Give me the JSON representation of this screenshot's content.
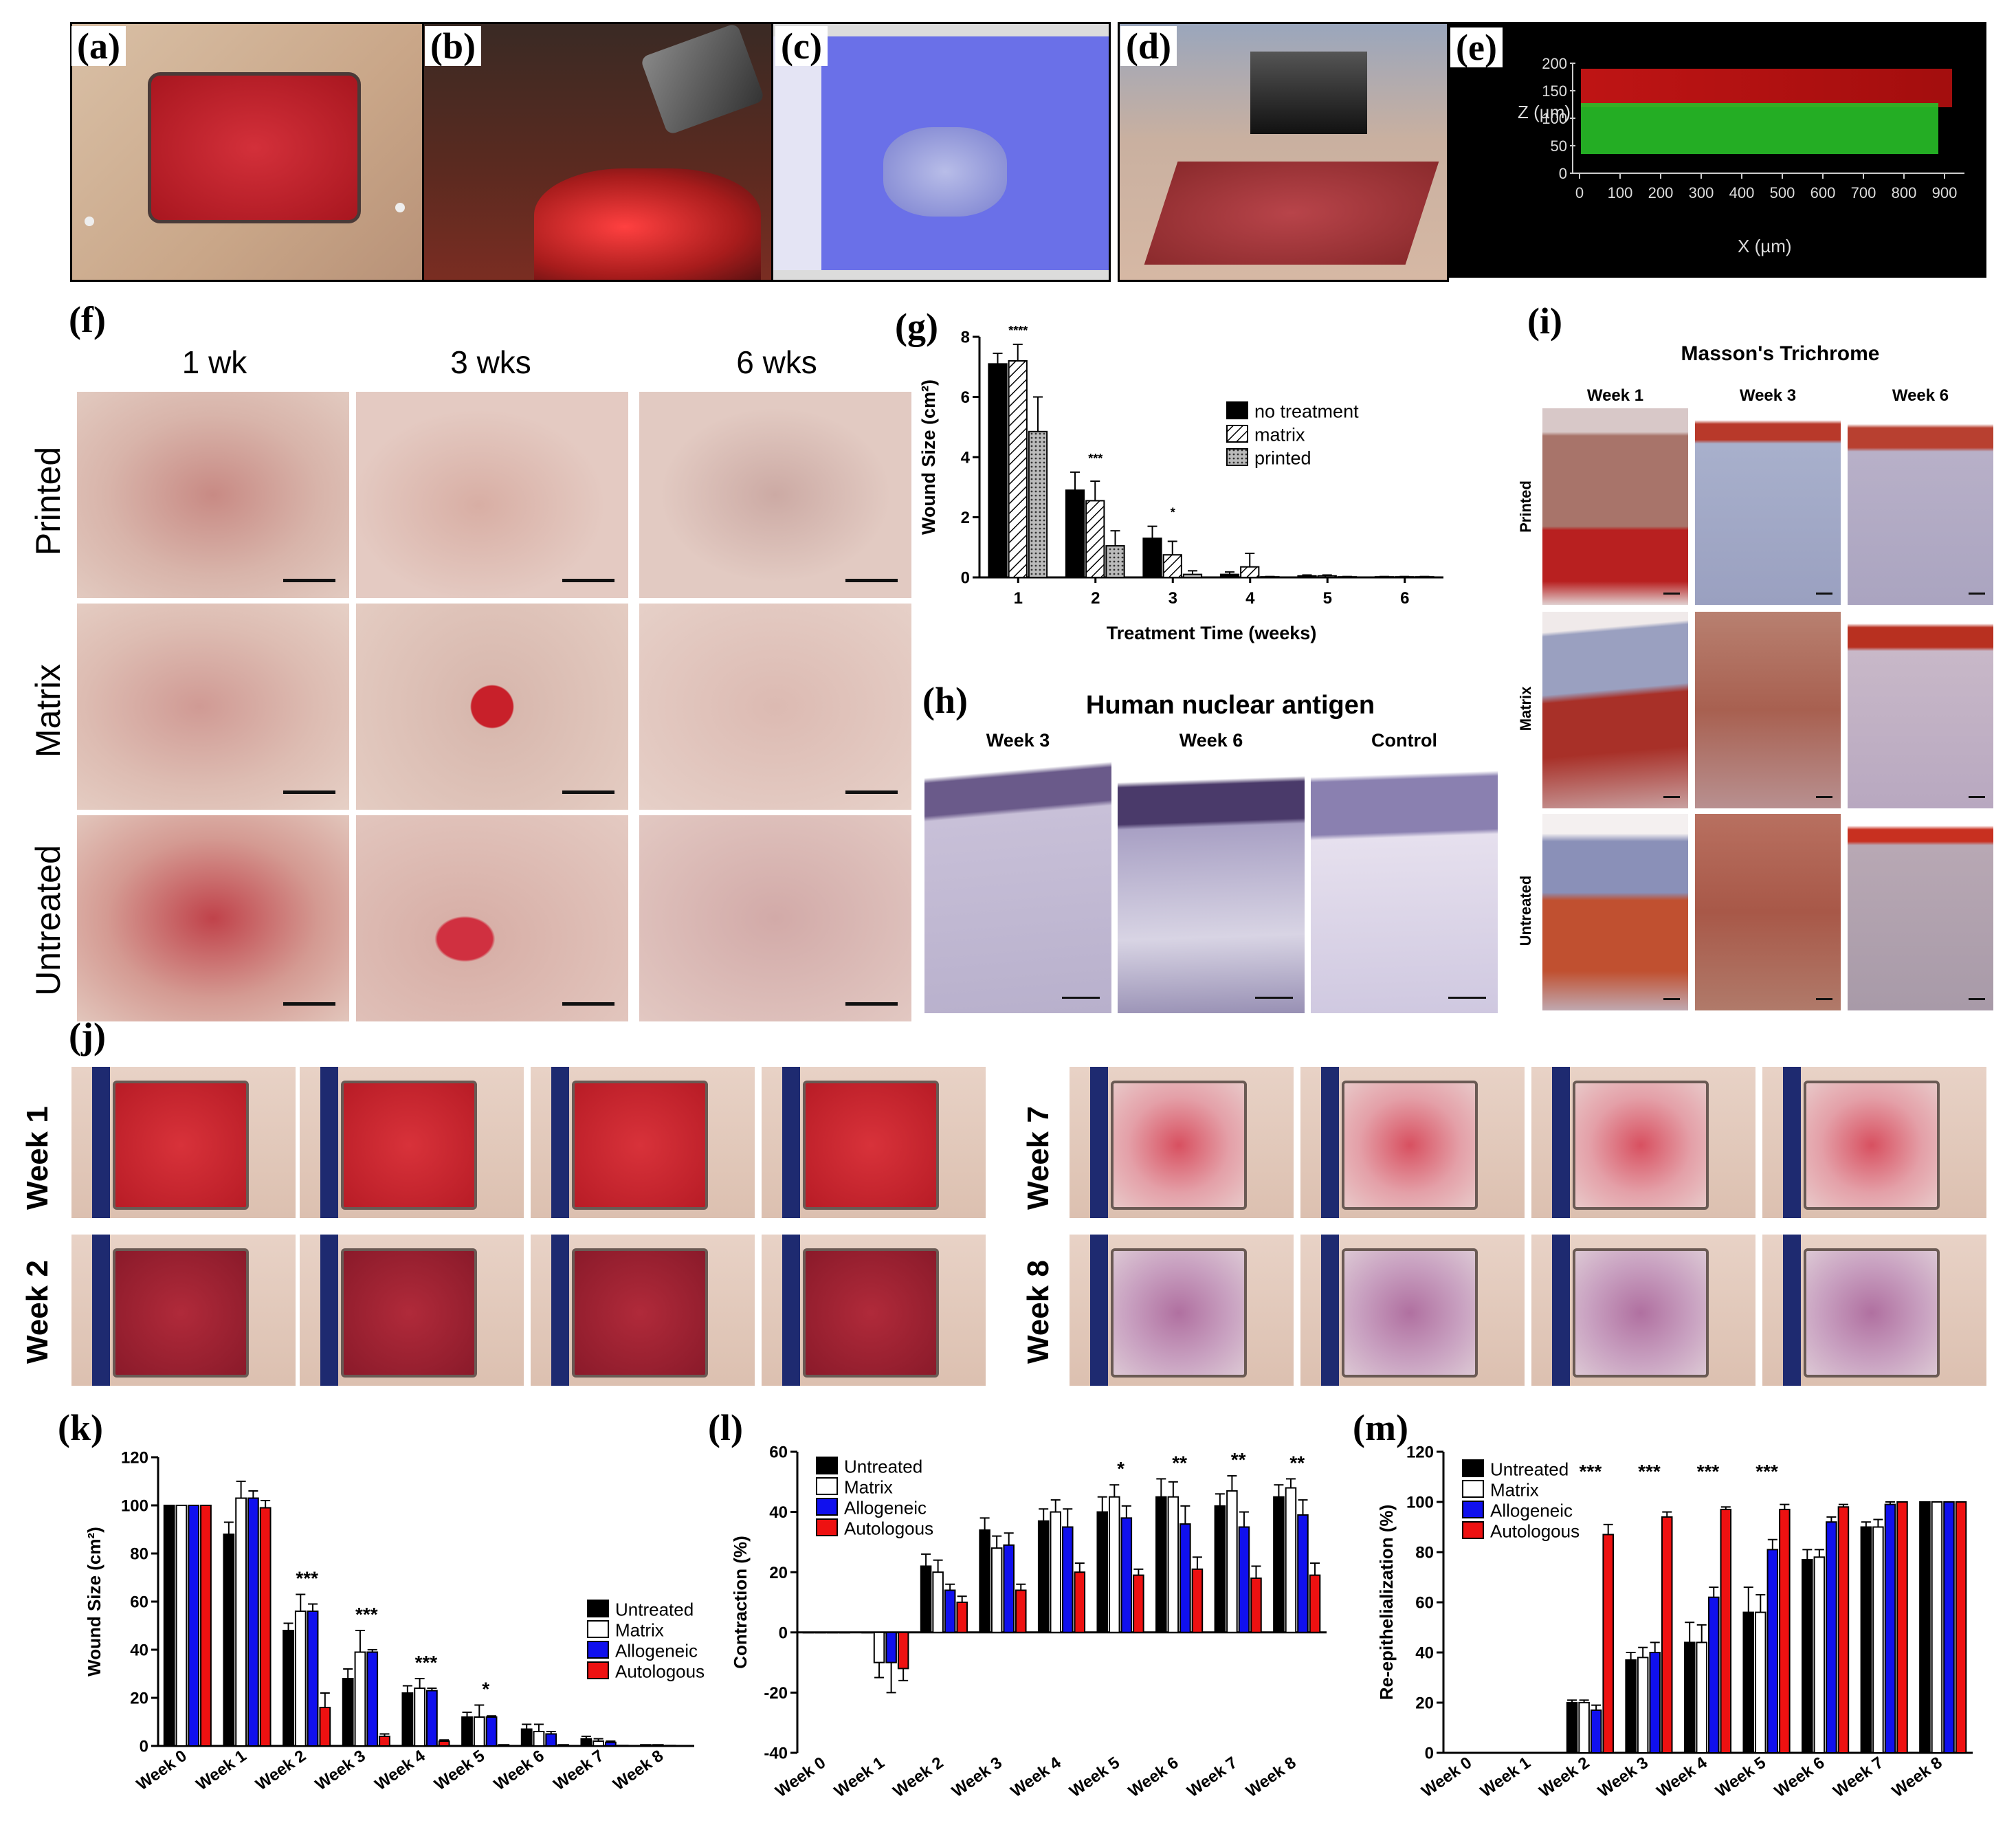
{
  "panel_letters": [
    "(a)",
    "(b)",
    "(c)",
    "(d)",
    "(e)",
    "(f)",
    "(g)",
    "(h)",
    "(i)",
    "(j)",
    "(k)",
    "(l)",
    "(m)"
  ],
  "panel_e": {
    "ylabel": "Z (µm)",
    "xlabel": "X (µm)",
    "yticks": [
      "200",
      "150",
      "100",
      "50",
      "0"
    ],
    "xticks": [
      "0",
      "100",
      "200",
      "300",
      "400",
      "500",
      "600",
      "700",
      "800",
      "900"
    ]
  },
  "panel_f": {
    "columns": [
      "1 wk",
      "3 wks",
      "6 wks"
    ],
    "rows": [
      "Printed",
      "Matrix",
      "Untreated"
    ]
  },
  "panel_h": {
    "title": "Human nuclear antigen",
    "columns": [
      "Week 3",
      "Week 6",
      "Control"
    ]
  },
  "panel_i": {
    "title": "Masson's Trichrome",
    "columns": [
      "Week 1",
      "Week 3",
      "Week 6"
    ],
    "rows": [
      "Printed",
      "Matrix",
      "Untreated"
    ]
  },
  "panel_j": {
    "rows_left": [
      "Week 1",
      "Week 2"
    ],
    "rows_right": [
      "Week 7",
      "Week 8"
    ]
  },
  "chart_data": [
    {
      "id": "g",
      "type": "bar",
      "xlabel": "Treatment Time (weeks)",
      "ylabel": "Wound Size (cm²)",
      "ylim": [
        0,
        8
      ],
      "yticks": [
        "0",
        "2",
        "4",
        "6",
        "8"
      ],
      "categories": [
        "1",
        "2",
        "3",
        "4",
        "5",
        "6"
      ],
      "series": [
        {
          "name": "no treatment",
          "values": [
            7.1,
            2.9,
            1.3,
            0.1,
            0.05,
            0.02
          ],
          "err": [
            0.35,
            0.6,
            0.4,
            0.08,
            0.03,
            0.01
          ]
        },
        {
          "name": "matrix",
          "values": [
            7.2,
            2.55,
            0.75,
            0.35,
            0.05,
            0.02
          ],
          "err": [
            0.55,
            0.65,
            0.45,
            0.45,
            0.03,
            0.01
          ]
        },
        {
          "name": "printed",
          "values": [
            4.85,
            1.05,
            0.1,
            0.02,
            0.02,
            0.02
          ],
          "err": [
            1.15,
            0.5,
            0.12,
            0.01,
            0.01,
            0.01
          ]
        }
      ],
      "significance": [
        "****",
        "***",
        "*",
        "",
        "",
        ""
      ],
      "legend_position": "right"
    },
    {
      "id": "k",
      "type": "bar",
      "ylabel": "Wound Size (cm²)",
      "ylim": [
        0,
        120
      ],
      "yticks": [
        "0",
        "20",
        "40",
        "60",
        "80",
        "100",
        "120"
      ],
      "categories": [
        "Week 0",
        "Week 1",
        "Week 2",
        "Week 3",
        "Week 4",
        "Week 5",
        "Week 6",
        "Week 7",
        "Week 8"
      ],
      "series": [
        {
          "name": "Untreated",
          "values": [
            100,
            88,
            48,
            28,
            22,
            12,
            7,
            3,
            0.5
          ],
          "err": [
            0,
            5,
            3,
            4,
            3,
            2,
            2,
            1,
            0
          ]
        },
        {
          "name": "Matrix",
          "values": [
            100,
            103,
            56,
            39,
            24,
            12,
            6,
            2,
            0.5
          ],
          "err": [
            0,
            7,
            7,
            9,
            4,
            5,
            3,
            1,
            0
          ]
        },
        {
          "name": "Allogeneic",
          "values": [
            100,
            103,
            56,
            39,
            23,
            12,
            5,
            1.5,
            0.2
          ],
          "err": [
            0,
            3,
            3,
            1,
            1,
            0.5,
            1,
            0.5,
            0
          ]
        },
        {
          "name": "Autologous",
          "values": [
            100,
            99,
            16,
            4,
            2,
            0.5,
            0.5,
            0.2,
            0.1
          ],
          "err": [
            0,
            3,
            6,
            1,
            0.5,
            0,
            0,
            0,
            0
          ]
        }
      ],
      "significance": [
        "",
        "",
        "***",
        "***",
        "***",
        "*",
        "",
        "",
        ""
      ],
      "legend_position": "right"
    },
    {
      "id": "l",
      "type": "bar",
      "ylabel": "Contraction (%)",
      "ylim": [
        -40,
        60
      ],
      "yticks": [
        "-40",
        "-20",
        "0",
        "20",
        "40",
        "60"
      ],
      "categories": [
        "Week 0",
        "Week 1",
        "Week 2",
        "Week 3",
        "Week 4",
        "Week 5",
        "Week 6",
        "Week 7",
        "Week 8"
      ],
      "series": [
        {
          "name": "Untreated",
          "values": [
            0,
            0,
            22,
            34,
            37,
            40,
            45,
            42,
            45
          ],
          "err": [
            0,
            0,
            4,
            4,
            4,
            5,
            6,
            4,
            4
          ]
        },
        {
          "name": "Matrix",
          "values": [
            0,
            -10,
            20,
            28,
            40,
            45,
            45,
            47,
            48
          ],
          "err": [
            0,
            5,
            4,
            4,
            4,
            4,
            5,
            5,
            3
          ]
        },
        {
          "name": "Allogeneic",
          "values": [
            0,
            -10,
            14,
            29,
            35,
            38,
            36,
            35,
            39
          ],
          "err": [
            0,
            10,
            2,
            4,
            6,
            4,
            6,
            5,
            5
          ]
        },
        {
          "name": "Autologous",
          "values": [
            0,
            -12,
            10,
            14,
            20,
            19,
            21,
            18,
            19
          ],
          "err": [
            0,
            4,
            2,
            2,
            3,
            2,
            4,
            4,
            4
          ]
        }
      ],
      "significance": [
        "",
        "",
        "",
        "",
        "",
        "*",
        "**",
        "**",
        "**"
      ],
      "legend_position": "top-left"
    },
    {
      "id": "m",
      "type": "bar",
      "ylabel": "Re-epithelialization (%)",
      "ylim": [
        0,
        120
      ],
      "yticks": [
        "0",
        "20",
        "40",
        "60",
        "80",
        "100",
        "120"
      ],
      "categories": [
        "Week 0",
        "Week 1",
        "Week 2",
        "Week 3",
        "Week 4",
        "Week 5",
        "Week 6",
        "Week 7",
        "Week 8"
      ],
      "series": [
        {
          "name": "Untreated",
          "values": [
            0,
            0,
            20,
            37,
            44,
            56,
            77,
            90,
            100
          ],
          "err": [
            0,
            0,
            1,
            3,
            8,
            10,
            4,
            2,
            0
          ]
        },
        {
          "name": "Matrix",
          "values": [
            0,
            0,
            20,
            38,
            44,
            56,
            78,
            90,
            100
          ],
          "err": [
            0,
            0,
            1,
            4,
            7,
            7,
            3,
            3,
            0
          ]
        },
        {
          "name": "Allogeneic",
          "values": [
            0,
            0,
            17,
            40,
            62,
            81,
            92,
            99,
            100
          ],
          "err": [
            0,
            0,
            2,
            4,
            4,
            4,
            2,
            1,
            0
          ]
        },
        {
          "name": "Autologous",
          "values": [
            0,
            0,
            87,
            94,
            97,
            97,
            98,
            100,
            100
          ],
          "err": [
            0,
            0,
            4,
            2,
            1,
            2,
            1,
            0,
            0
          ]
        }
      ],
      "significance": [
        "",
        "",
        "***",
        "***",
        "***",
        "***",
        "",
        "",
        ""
      ],
      "legend_position": "top-left"
    }
  ],
  "colors": {
    "untreated": "#000000",
    "matrix": "#ffffff",
    "allogeneic": "#1010ee",
    "autologous": "#ee1111",
    "wound_red": "#c0232d",
    "skin": "#d8b8a8"
  }
}
